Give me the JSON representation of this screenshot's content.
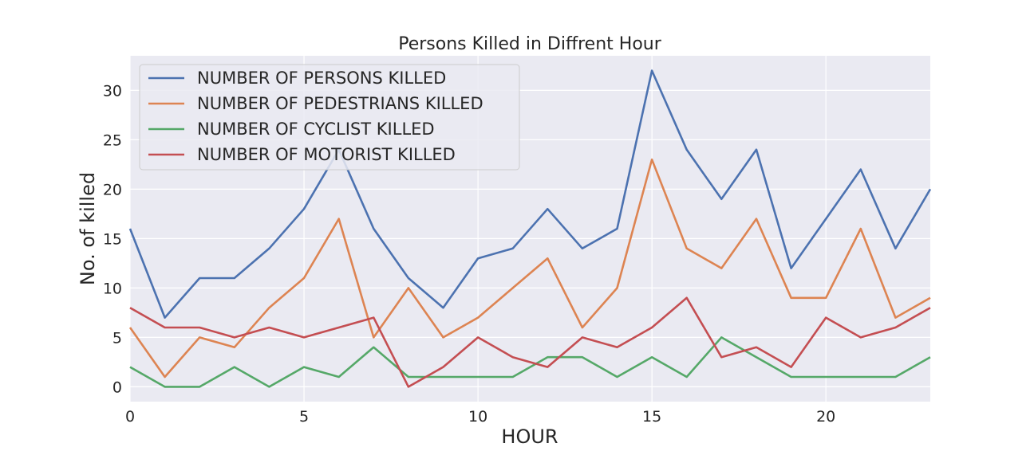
{
  "chart_data": {
    "type": "line",
    "title": "Persons Killed in Diffrent Hour",
    "xlabel": "HOUR",
    "ylabel": "No. of killed",
    "x": [
      0,
      1,
      2,
      3,
      4,
      5,
      6,
      7,
      8,
      9,
      10,
      11,
      12,
      13,
      14,
      15,
      16,
      17,
      18,
      19,
      20,
      21,
      22,
      23
    ],
    "xlim": [
      0,
      23
    ],
    "ylim": [
      -1.5,
      33.5
    ],
    "xticks": [
      0,
      5,
      10,
      15,
      20
    ],
    "yticks": [
      0,
      5,
      10,
      15,
      20,
      25,
      30
    ],
    "grid": true,
    "legend_position": "top-left",
    "series": [
      {
        "name": "NUMBER OF PERSONS KILLED",
        "color": "#4c72b0",
        "values": [
          16,
          7,
          11,
          11,
          14,
          18,
          24,
          16,
          11,
          8,
          13,
          14,
          18,
          14,
          16,
          32,
          24,
          19,
          24,
          12,
          17,
          22,
          14,
          20
        ]
      },
      {
        "name": "NUMBER OF PEDESTRIANS KILLED",
        "color": "#dd8452",
        "values": [
          6,
          1,
          5,
          4,
          8,
          11,
          17,
          5,
          10,
          5,
          7,
          10,
          13,
          6,
          10,
          23,
          14,
          12,
          17,
          9,
          9,
          16,
          7,
          9
        ]
      },
      {
        "name": "NUMBER OF CYCLIST KILLED",
        "color": "#55a868",
        "values": [
          2,
          0,
          0,
          2,
          0,
          2,
          1,
          4,
          1,
          1,
          1,
          1,
          3,
          3,
          1,
          3,
          1,
          5,
          3,
          1,
          1,
          1,
          1,
          3
        ]
      },
      {
        "name": "NUMBER OF MOTORIST KILLED",
        "color": "#c44e52",
        "values": [
          8,
          6,
          6,
          5,
          6,
          5,
          6,
          7,
          0,
          2,
          5,
          3,
          2,
          5,
          4,
          6,
          9,
          3,
          4,
          2,
          7,
          5,
          6,
          8
        ]
      }
    ]
  }
}
